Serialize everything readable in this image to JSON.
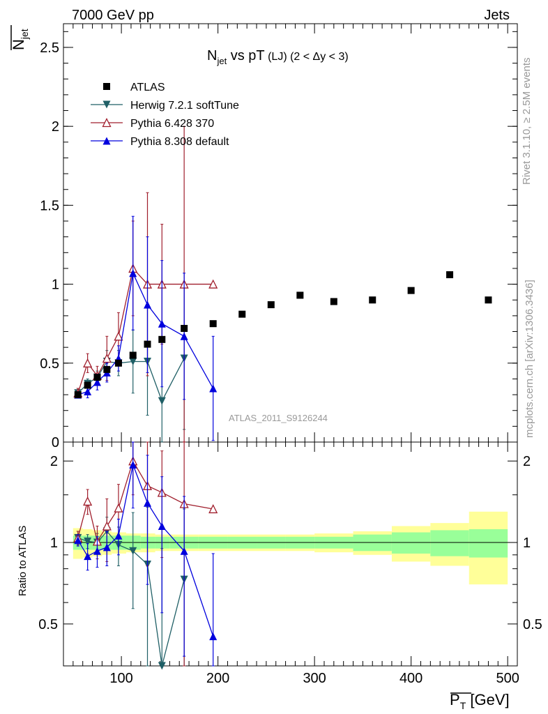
{
  "header": {
    "left": "7000 GeV pp",
    "right": "Jets"
  },
  "side_texts": {
    "rivet": "Rivet 3.1.10, ≥ 2.5M events",
    "mcplots": "mcplots.cern.ch [arXiv:1306.3436]"
  },
  "watermark": "ATLAS_2011_S9126244",
  "chart_data": [
    {
      "type": "scatter",
      "panel": "main",
      "title_parts": {
        "n": "N",
        "sub": "jet",
        "mid": " vs pT",
        "lj": " (LJ)",
        "range": " (2 < Δy < 3)"
      },
      "ylabel_parts": {
        "n": "N",
        "sub": "jet"
      },
      "xlim": [
        40,
        510
      ],
      "ylim": [
        0,
        2.65
      ],
      "yticks": [
        0.5,
        1,
        1.5,
        2,
        2.5
      ],
      "ytick_labels": [
        "0.5",
        "1",
        "1.5",
        "2",
        "2.5"
      ],
      "y_zero_label": "0",
      "legend_position": "top-left",
      "series": [
        {
          "name": "ATLAS",
          "color": "#000000",
          "marker": "square",
          "x": [
            55,
            65,
            75,
            85,
            97,
            112,
            127,
            142,
            165,
            195,
            225,
            255,
            285,
            320,
            360,
            400,
            440,
            480
          ],
          "y": [
            0.3,
            0.36,
            0.41,
            0.46,
            0.5,
            0.55,
            0.62,
            0.65,
            0.72,
            0.75,
            0.81,
            0.87,
            0.93,
            0.89,
            0.9,
            0.96,
            1.06,
            0.9
          ]
        },
        {
          "name": "Herwig 7.2.1 softTune",
          "color": "#1f5f66",
          "marker": "triangle-down",
          "x": [
            55,
            65,
            75,
            85,
            97,
            112,
            127,
            142,
            165
          ],
          "y": [
            0.31,
            0.37,
            0.41,
            0.51,
            0.5,
            0.51,
            0.51,
            0.26,
            0.53
          ],
          "yerr": [
            0.03,
            0.03,
            0.04,
            0.07,
            0.08,
            0.2,
            0.34,
            0.4,
            0.45
          ]
        },
        {
          "name": "Pythia 6.428 370",
          "color": "#a01e2c",
          "marker": "triangle-up-open",
          "x": [
            55,
            65,
            75,
            85,
            97,
            112,
            127,
            142,
            165,
            195
          ],
          "y": [
            0.31,
            0.5,
            0.42,
            0.53,
            0.67,
            1.1,
            1.0,
            1.0,
            1.0,
            1.0
          ],
          "yerr": [
            0.03,
            0.06,
            0.06,
            0.14,
            0.15,
            0.3,
            0.58,
            0.38,
            1.0,
            0.0
          ]
        },
        {
          "name": "Pythia 8.308 default",
          "color": "#0000dd",
          "marker": "triangle-up",
          "x": [
            55,
            65,
            75,
            85,
            97,
            112,
            127,
            142,
            165,
            195
          ],
          "y": [
            0.3,
            0.32,
            0.38,
            0.44,
            0.53,
            1.07,
            0.87,
            0.75,
            0.67,
            0.34
          ],
          "yerr": [
            0.02,
            0.04,
            0.05,
            0.06,
            0.08,
            0.36,
            0.43,
            0.4,
            0.4,
            0.33
          ]
        }
      ]
    },
    {
      "type": "scatter",
      "panel": "ratio",
      "ylabel": "Ratio to ATLAS",
      "xlabel_parts": {
        "p": "P",
        "sub": "T",
        "unit": " [GeV]"
      },
      "xlim": [
        40,
        510
      ],
      "ylim": [
        0.35,
        2.35
      ],
      "xticks": [
        100,
        200,
        300,
        400,
        500
      ],
      "xtick_labels": [
        "100",
        "200",
        "300",
        "400",
        "500"
      ],
      "yticks": [
        0.5,
        1,
        2
      ],
      "ytick_labels": [
        "0.5",
        "1",
        "2"
      ],
      "bands": {
        "edges": [
          50,
          60,
          70,
          80,
          90,
          105,
          120,
          135,
          150,
          180,
          210,
          240,
          270,
          300,
          340,
          380,
          420,
          460,
          500
        ],
        "inner_color": "#99ff99",
        "outer_color": "#ffff99",
        "inner_half_width": [
          0.06,
          0.06,
          0.06,
          0.06,
          0.06,
          0.06,
          0.05,
          0.05,
          0.05,
          0.05,
          0.05,
          0.05,
          0.05,
          0.05,
          0.07,
          0.09,
          0.11,
          0.12
        ],
        "outer_half_width": [
          0.13,
          0.12,
          0.11,
          0.1,
          0.09,
          0.08,
          0.08,
          0.07,
          0.07,
          0.07,
          0.07,
          0.07,
          0.07,
          0.08,
          0.1,
          0.15,
          0.18,
          0.3
        ]
      },
      "series": [
        {
          "name": "Herwig 7.2.1 softTune",
          "color": "#1f5f66",
          "marker": "triangle-down",
          "x": [
            55,
            65,
            75,
            85,
            97,
            112,
            127,
            142,
            165
          ],
          "y": [
            1.04,
            1.01,
            1.0,
            1.1,
            0.98,
            0.93,
            0.83,
            0.35,
            0.73
          ],
          "yerr": [
            0.06,
            0.06,
            0.08,
            0.14,
            0.16,
            0.36,
            0.52,
            0.6,
            0.6
          ]
        },
        {
          "name": "Pythia 6.428 370",
          "color": "#a01e2c",
          "marker": "triangle-up-open",
          "x": [
            55,
            65,
            75,
            85,
            97,
            112,
            127,
            142,
            165,
            195
          ],
          "y": [
            1.04,
            1.42,
            1.01,
            1.15,
            1.34,
            2.0,
            1.62,
            1.53,
            1.39,
            1.33
          ],
          "yerr": [
            0.06,
            0.15,
            0.14,
            0.3,
            0.3,
            0.5,
            0.8,
            0.65,
            1.05,
            0.0
          ]
        },
        {
          "name": "Pythia 8.308 default",
          "color": "#0000dd",
          "marker": "triangle-up",
          "x": [
            55,
            65,
            75,
            85,
            97,
            112,
            127,
            142,
            165,
            195
          ],
          "y": [
            1.02,
            0.89,
            0.93,
            0.96,
            1.06,
            1.94,
            1.4,
            1.15,
            0.93,
            0.45
          ],
          "yerr": [
            0.05,
            0.1,
            0.12,
            0.14,
            0.16,
            0.6,
            0.7,
            0.6,
            0.55,
            0.46
          ]
        }
      ]
    }
  ]
}
